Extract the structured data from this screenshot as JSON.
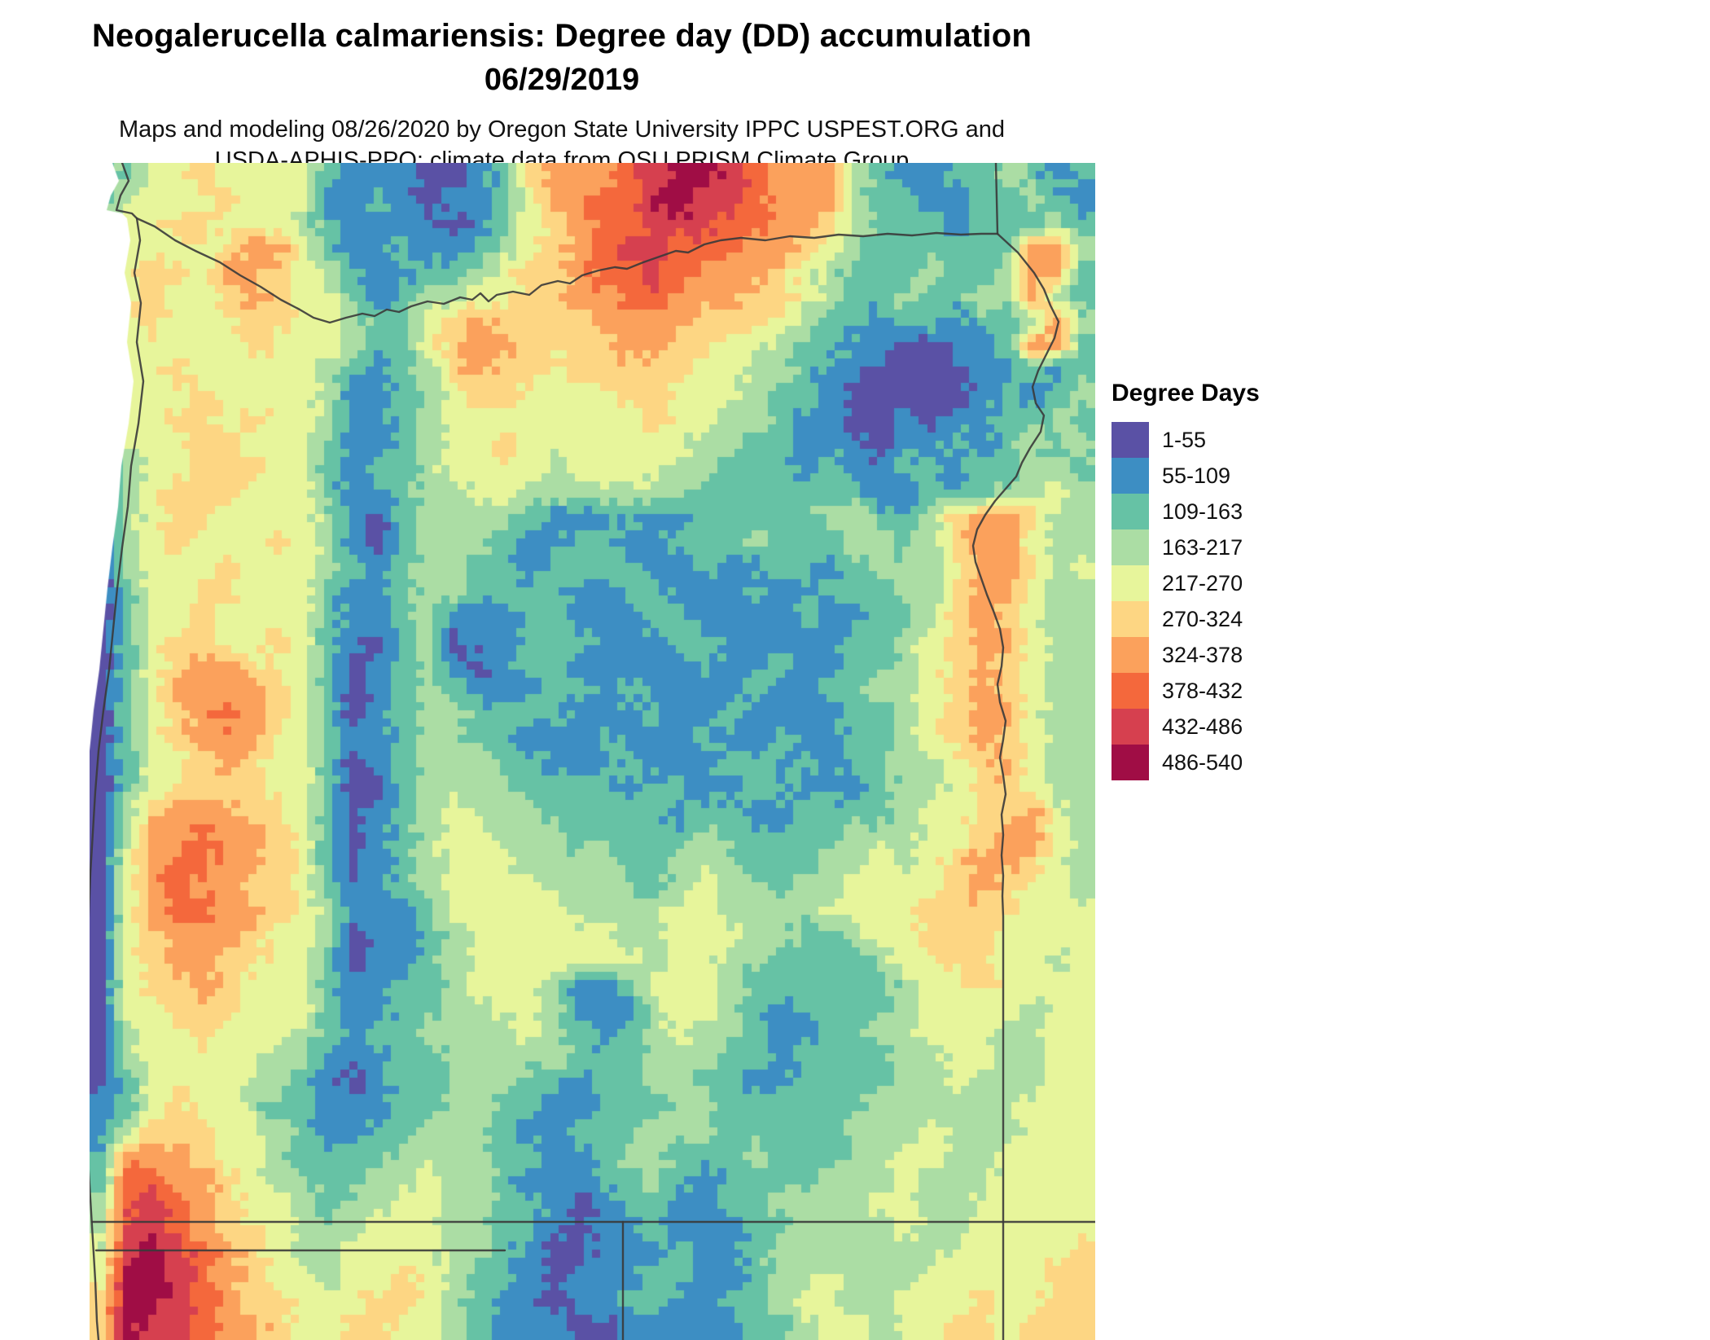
{
  "header": {
    "title_line1": "Neogalerucella calmariensis: Degree day (DD) accumulation",
    "title_line2": "06/29/2019",
    "subtitle_line1": "Maps and modeling 08/26/2020 by Oregon State University IPPC USPEST.ORG and",
    "subtitle_line2": "USDA-APHIS-PPQ; climate data from OSU PRISM Climate Group"
  },
  "legend": {
    "title": "Degree Days",
    "items": [
      {
        "label": "1-55",
        "color": "#5a51a5"
      },
      {
        "label": "55-109",
        "color": "#3d8ec3"
      },
      {
        "label": "109-163",
        "color": "#66c2a5"
      },
      {
        "label": "163-217",
        "color": "#abdda4"
      },
      {
        "label": "217-270",
        "color": "#e7f59b"
      },
      {
        "label": "270-324",
        "color": "#fdd683"
      },
      {
        "label": "324-378",
        "color": "#fba15c"
      },
      {
        "label": "378-432",
        "color": "#f4683c"
      },
      {
        "label": "432-486",
        "color": "#d6404f"
      },
      {
        "label": "486-540",
        "color": "#a00d45"
      }
    ]
  },
  "chart_data": {
    "type": "heatmap",
    "title": "Neogalerucella calmariensis: Degree day (DD) accumulation",
    "date": "06/29/2019",
    "region": "Oregon",
    "legend_title": "Degree Days",
    "classes": [
      "1-55",
      "55-109",
      "109-163",
      "163-217",
      "217-270",
      "270-324",
      "324-378",
      "378-432",
      "432-486",
      "486-540"
    ],
    "colors": [
      "#5a51a5",
      "#3d8ec3",
      "#66c2a5",
      "#abdda4",
      "#e7f59b",
      "#fdd683",
      "#fba15c",
      "#f4683c",
      "#d6404f",
      "#a00d45"
    ],
    "grid_cols": 40,
    "grid_rows": 48,
    "grid": [
      "3244544442111001256667899876663211223212",
      "2344454441121011246677998876663221122321",
      "2445544432111101245677888776653222122232",
      "1444456642112112345678877766543222222663",
      "1455466543211223455677876665432223223662",
      "1454456544212334455667766655432232233632",
      "1454445544322456555566665554322122122363",
      "1444445444322456655556655443221100112662",
      "1445444443212356554555554433211000011212",
      "1444544443112345544445544432210000012123",
      "1445545443112344444444544332110010112232",
      "0444554442112344544444443322111011212323",
      "0344555442122344443444433222121122122332",
      "0345554442112334433333332222222112223343",
      "0345544443102333321112112222233223566533",
      "0345444543102333211221122232223323566433",
      "0344454443212332212222112112212333466534",
      "0244554442112332222112211121122233566433",
      "0244544442112311122111221111211223565433",
      "0245544542102301122211122111112234566433",
      "0245665442012310122111112112112234565433",
      "0246666542012321112212111121122334565433",
      "0245676542012332222111211211112234566433",
      "0245666442112332211121112112112234565433",
      "0244565442012333221112111221212233456433",
      "0245555442002333322221221122111233455433",
      "0356665542012343332222212211222234455643",
      "0366766542012344333222223222223334456643",
      "0467766542012344433332233322233434566543",
      "0467665542112344443333234332334444565443",
      "0467766543111244444333344333344445555444",
      "0456665443011234444443344433223445554444",
      "0456655442011234444444344332222344554434",
      "0455654442112234443112444322222234454444",
      "0445554442112233443111344321222234444344",
      "0344544432122333343212343321122334443344",
      "0344444331112233333222333221222233443344",
      "0244443321012233322122332211222233433344",
      "1245443221112233221122233222222333333444",
      "1355544321122333211222333222223334333444",
      "2666544322223333221123322232223344334444",
      "2776654332233433211122321222233343334444",
      "3787654432334433221012211223333443344444",
      "3887655433344433221011211122333343344444",
      "4898765433444433210011121123333333444445",
      "4998765443445432210111221123343334444455",
      "5998765544455432110112211223443344454455",
      "5988766544554432111001111122344344554555"
    ]
  }
}
